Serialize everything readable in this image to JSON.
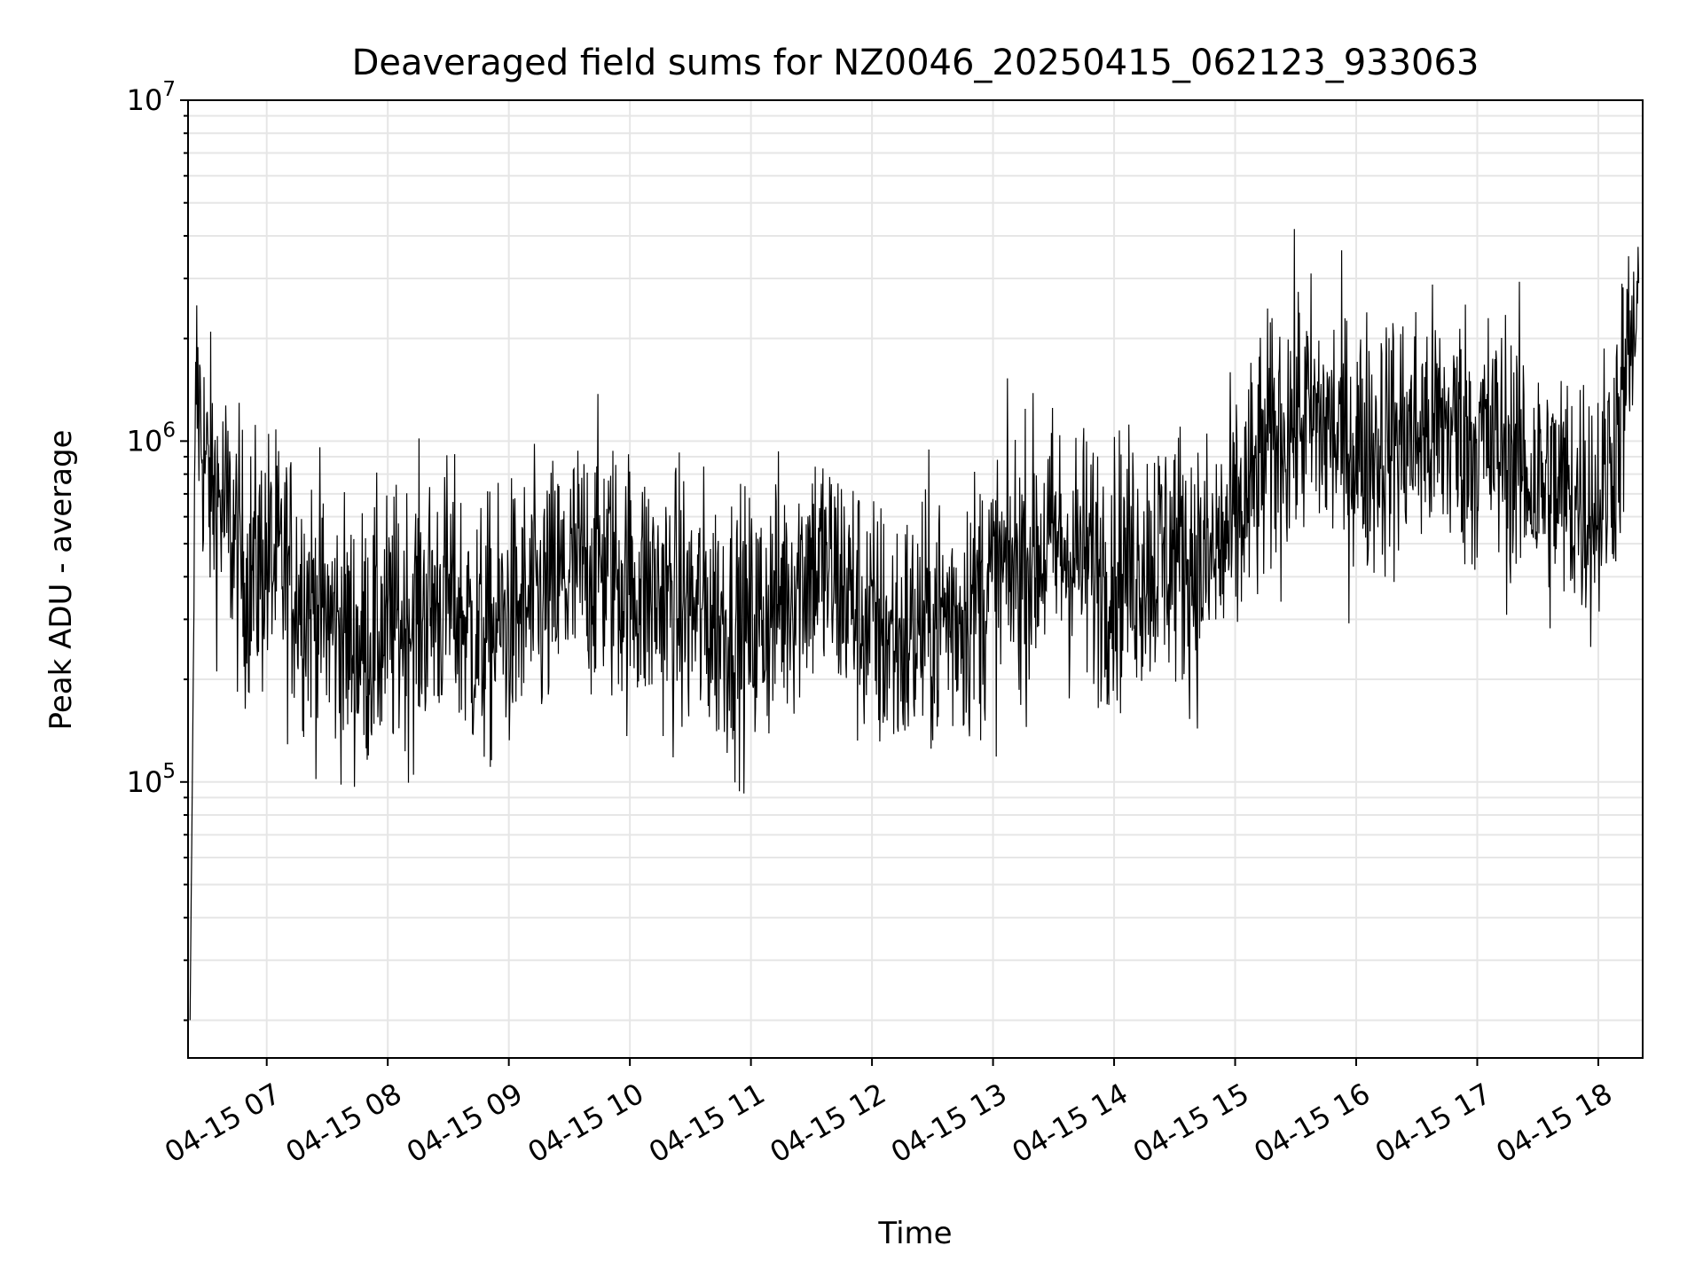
{
  "chart_data": {
    "type": "line",
    "title": "Deaveraged field sums for NZ0046_20250415_062123_933063",
    "xlabel": "Time",
    "ylabel": "Peak ADU - average",
    "yscale": "log",
    "ylim": [
      15500,
      10000000
    ],
    "xlim": [
      "04-15 06:21",
      "04-15 18:22"
    ],
    "grid": true,
    "line_color": "#000000",
    "x_tick_labels": [
      "04-15 07",
      "04-15 08",
      "04-15 09",
      "04-15 10",
      "04-15 11",
      "04-15 12",
      "04-15 13",
      "04-15 14",
      "04-15 15",
      "04-15 16",
      "04-15 17",
      "04-15 18"
    ],
    "y_ticks": [
      {
        "value": 100000,
        "base": "10",
        "exp": "5"
      },
      {
        "value": 1000000,
        "base": "10",
        "exp": "6"
      },
      {
        "value": 10000000,
        "base": "10",
        "exp": "7"
      }
    ],
    "series": [
      {
        "x": [
          "04-15 06:22",
          "04-15 06:25",
          "04-15 06:30",
          "04-15 06:40",
          "04-15 06:50",
          "04-15 07:00",
          "04-15 07:15",
          "04-15 07:30",
          "04-15 07:45",
          "04-15 08:00",
          "04-15 08:15",
          "04-15 08:30",
          "04-15 08:45",
          "04-15 09:00",
          "04-15 09:15",
          "04-15 09:30",
          "04-15 09:45",
          "04-15 10:00",
          "04-15 10:15",
          "04-15 10:30",
          "04-15 10:45",
          "04-15 11:00",
          "04-15 11:15",
          "04-15 11:30",
          "04-15 11:45",
          "04-15 12:00",
          "04-15 12:15",
          "04-15 12:30",
          "04-15 12:45",
          "04-15 13:00",
          "04-15 13:15",
          "04-15 13:30",
          "04-15 13:45",
          "04-15 14:00",
          "04-15 14:15",
          "04-15 14:30",
          "04-15 14:45",
          "04-15 15:00",
          "04-15 15:15",
          "04-15 15:30",
          "04-15 15:45",
          "04-15 16:00",
          "04-15 16:15",
          "04-15 16:30",
          "04-15 16:45",
          "04-15 17:00",
          "04-15 17:15",
          "04-15 17:30",
          "04-15 17:45",
          "04-15 18:00",
          "04-15 18:10",
          "04-15 18:20"
        ],
        "values": [
          20000,
          1500000,
          800000,
          600000,
          400000,
          450000,
          380000,
          300000,
          250000,
          280000,
          320000,
          350000,
          260000,
          300000,
          330000,
          400000,
          450000,
          380000,
          350000,
          320000,
          300000,
          280000,
          350000,
          450000,
          380000,
          280000,
          260000,
          300000,
          320000,
          380000,
          450000,
          500000,
          450000,
          420000,
          450000,
          480000,
          420000,
          550000,
          900000,
          1200000,
          1100000,
          950000,
          1000000,
          1050000,
          1100000,
          1000000,
          950000,
          750000,
          700000,
          650000,
          1100000,
          2500000
        ]
      }
    ]
  }
}
